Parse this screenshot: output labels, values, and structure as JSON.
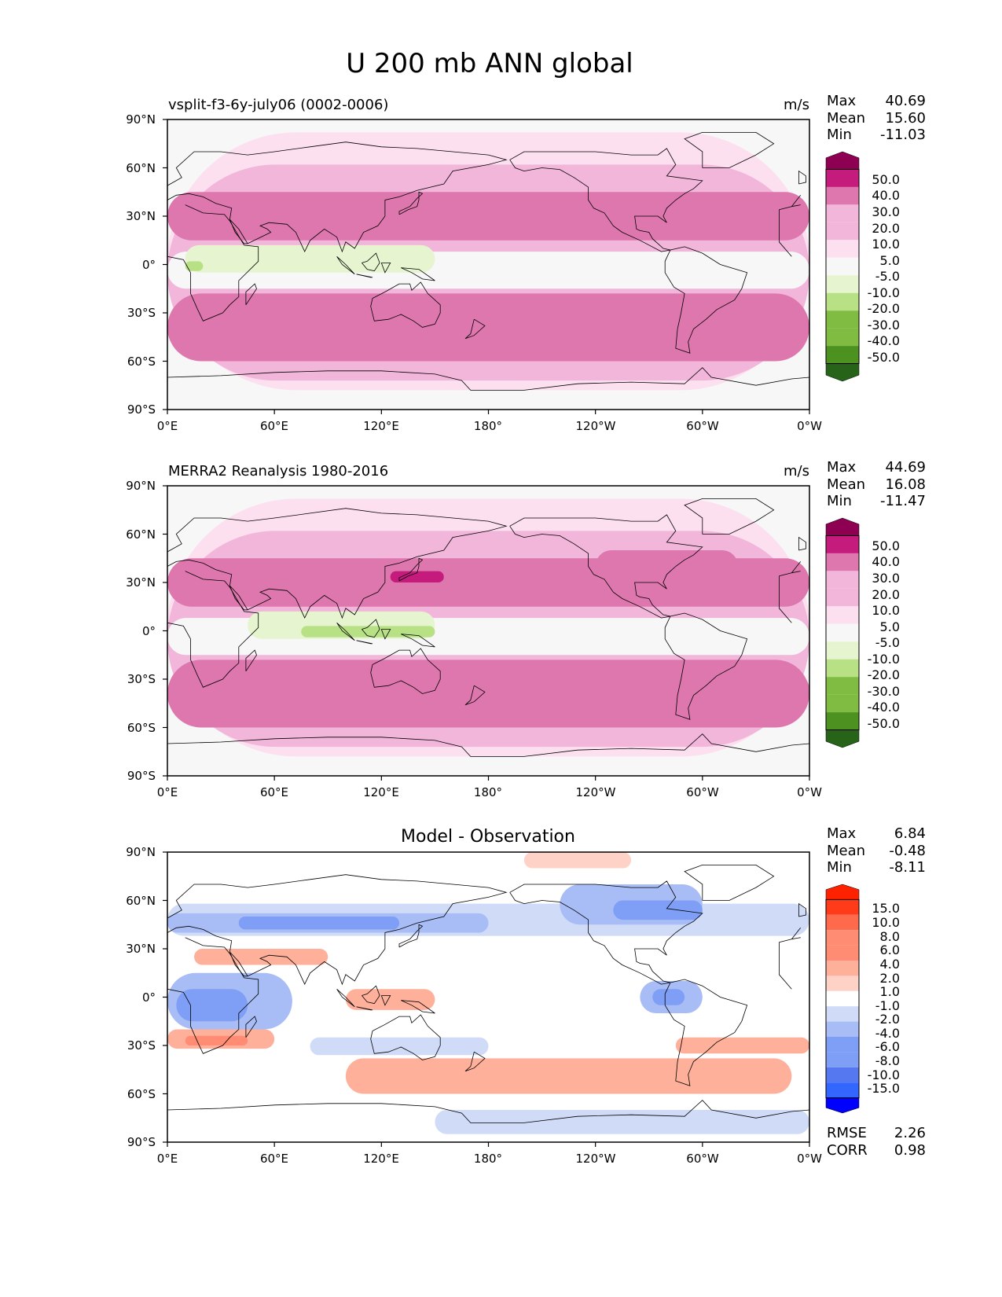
{
  "figure_title": "U 200 mb ANN global",
  "colors": {
    "ref_levels": [
      "#276419",
      "#4d9221",
      "#7fbc41",
      "#b8e186",
      "#e6f5d0",
      "#f7f7f7",
      "#fde0ef",
      "#f1b6da",
      "#de77ae",
      "#c51b7d",
      "#8e0152"
    ],
    "diff_levels": [
      "#0000ff",
      "#3366ff",
      "#5577f0",
      "#7f9ef5",
      "#a8bcf5",
      "#cfdbf7",
      "#ffffff",
      "#ffd2c7",
      "#ffb09b",
      "#ff8c73",
      "#ff6a4d",
      "#ff3b1a",
      "#ff2200"
    ]
  },
  "chart_data": [
    {
      "type": "heatmap",
      "title": "vsplit-f3-6y-july06 (0002-0006)",
      "units": "m/s",
      "stats": [
        {
          "label": "Max",
          "value": "40.69"
        },
        {
          "label": "Mean",
          "value": "15.60"
        },
        {
          "label": "Min",
          "value": "-11.03"
        }
      ],
      "colorbar_ticks": [
        "50.0",
        "40.0",
        "30.0",
        "20.0",
        "10.0",
        "5.0",
        "-5.0",
        "-10.0",
        "-20.0",
        "-30.0",
        "-40.0",
        "-50.0"
      ],
      "x_ticks": [
        "0°E",
        "60°E",
        "120°E",
        "180°",
        "120°W",
        "60°W",
        "0°W"
      ],
      "y_ticks": [
        "90°N",
        "60°N",
        "30°N",
        "0°",
        "30°S",
        "60°S",
        "90°S"
      ],
      "xlim": [
        0,
        360
      ],
      "ylim": [
        -90,
        90
      ],
      "features": [
        {
          "lon": [
            0,
            360
          ],
          "lat": [
            -90,
            90
          ],
          "u": 0
        },
        {
          "lon": [
            0,
            360
          ],
          "lat": [
            -78,
            82
          ],
          "u": 7
        },
        {
          "lon": [
            0,
            360
          ],
          "lat": [
            -72,
            62
          ],
          "u": 12
        },
        {
          "lon": [
            0,
            360
          ],
          "lat": [
            15,
            45
          ],
          "u": 22
        },
        {
          "lon": [
            60,
            320
          ],
          "lat": [
            22,
            40
          ],
          "u": 26
        },
        {
          "lon": [
            10,
            170
          ],
          "lat": [
            25,
            38
          ],
          "u": 32
        },
        {
          "lon": [
            120,
            150
          ],
          "lat": [
            28,
            36
          ],
          "u": 36
        },
        {
          "lon": [
            0,
            360
          ],
          "lat": [
            -15,
            8
          ],
          "u": 2
        },
        {
          "lon": [
            10,
            150
          ],
          "lat": [
            -5,
            12
          ],
          "u": -7
        },
        {
          "lon": [
            10,
            20
          ],
          "lat": [
            -4,
            2
          ],
          "u": -12
        },
        {
          "lon": [
            0,
            360
          ],
          "lat": [
            -60,
            -18
          ],
          "u": 22
        },
        {
          "lon": [
            0,
            125
          ],
          "lat": [
            -55,
            -25
          ],
          "u": 33
        },
        {
          "lon": [
            100,
            215
          ],
          "lat": [
            -40,
            -26
          ],
          "u": 33
        },
        {
          "lon": [
            265,
            360
          ],
          "lat": [
            -50,
            -28
          ],
          "u": 32
        }
      ]
    },
    {
      "type": "heatmap",
      "title": "MERRA2 Reanalysis 1980-2016",
      "units": "m/s",
      "stats": [
        {
          "label": "Max",
          "value": "44.69"
        },
        {
          "label": "Mean",
          "value": "16.08"
        },
        {
          "label": "Min",
          "value": "-11.47"
        }
      ],
      "colorbar_ticks": [
        "50.0",
        "40.0",
        "30.0",
        "20.0",
        "10.0",
        "5.0",
        "-5.0",
        "-10.0",
        "-20.0",
        "-30.0",
        "-40.0",
        "-50.0"
      ],
      "x_ticks": [
        "0°E",
        "60°E",
        "120°E",
        "180°",
        "120°W",
        "60°W",
        "0°W"
      ],
      "y_ticks": [
        "90°N",
        "60°N",
        "30°N",
        "0°",
        "30°S",
        "60°S",
        "90°S"
      ],
      "xlim": [
        0,
        360
      ],
      "ylim": [
        -90,
        90
      ],
      "features": [
        {
          "lon": [
            0,
            360
          ],
          "lat": [
            -90,
            90
          ],
          "u": 0
        },
        {
          "lon": [
            0,
            360
          ],
          "lat": [
            -78,
            82
          ],
          "u": 7
        },
        {
          "lon": [
            0,
            360
          ],
          "lat": [
            -72,
            62
          ],
          "u": 12
        },
        {
          "lon": [
            0,
            360
          ],
          "lat": [
            15,
            45
          ],
          "u": 22
        },
        {
          "lon": [
            60,
            180
          ],
          "lat": [
            22,
            42
          ],
          "u": 27
        },
        {
          "lon": [
            240,
            320
          ],
          "lat": [
            30,
            50
          ],
          "u": 26
        },
        {
          "lon": [
            10,
            180
          ],
          "lat": [
            25,
            38
          ],
          "u": 32
        },
        {
          "lon": [
            110,
            160
          ],
          "lat": [
            27,
            40
          ],
          "u": 38
        },
        {
          "lon": [
            125,
            155
          ],
          "lat": [
            30,
            37
          ],
          "u": 42
        },
        {
          "lon": [
            0,
            360
          ],
          "lat": [
            -15,
            8
          ],
          "u": 2
        },
        {
          "lon": [
            45,
            150
          ],
          "lat": [
            -5,
            12
          ],
          "u": -7
        },
        {
          "lon": [
            75,
            150
          ],
          "lat": [
            -4,
            3
          ],
          "u": -12
        },
        {
          "lon": [
            0,
            360
          ],
          "lat": [
            -60,
            -18
          ],
          "u": 22
        },
        {
          "lon": [
            0,
            110
          ],
          "lat": [
            -55,
            -25
          ],
          "u": 33
        },
        {
          "lon": [
            100,
            215
          ],
          "lat": [
            -35,
            -24
          ],
          "u": 33
        },
        {
          "lon": [
            255,
            360
          ],
          "lat": [
            -47,
            -26
          ],
          "u": 32
        }
      ]
    },
    {
      "type": "heatmap",
      "title": "Model - Observation",
      "units": "",
      "stats": [
        {
          "label": "Max",
          "value": "6.84"
        },
        {
          "label": "Mean",
          "value": "-0.48"
        },
        {
          "label": "Min",
          "value": "-8.11"
        }
      ],
      "colorbar_ticks": [
        "15.0",
        "10.0",
        "8.0",
        "6.0",
        "4.0",
        "2.0",
        "1.0",
        "-1.0",
        "-2.0",
        "-4.0",
        "-6.0",
        "-8.0",
        "-10.0",
        "-15.0"
      ],
      "x_ticks": [
        "0°E",
        "60°E",
        "120°E",
        "180°",
        "120°W",
        "60°W",
        "0°W"
      ],
      "y_ticks": [
        "90°N",
        "60°N",
        "30°N",
        "0°",
        "30°S",
        "60°S",
        "90°S"
      ],
      "xlim": [
        0,
        360
      ],
      "ylim": [
        -90,
        90
      ],
      "metrics": [
        {
          "label": "RMSE",
          "value": "2.26"
        },
        {
          "label": "CORR",
          "value": "0.98"
        }
      ],
      "features": [
        {
          "lon": [
            0,
            360
          ],
          "lat": [
            -90,
            90
          ],
          "u": 0
        },
        {
          "lon": [
            0,
            360
          ],
          "lat": [
            38,
            58
          ],
          "u": -2
        },
        {
          "lon": [
            0,
            180
          ],
          "lat": [
            40,
            52
          ],
          "u": -4
        },
        {
          "lon": [
            40,
            130
          ],
          "lat": [
            42,
            50
          ],
          "u": -6
        },
        {
          "lon": [
            220,
            300
          ],
          "lat": [
            45,
            70
          ],
          "u": -3
        },
        {
          "lon": [
            250,
            300
          ],
          "lat": [
            48,
            60
          ],
          "u": -5
        },
        {
          "lon": [
            0,
            70
          ],
          "lat": [
            -20,
            15
          ],
          "u": -3
        },
        {
          "lon": [
            5,
            45
          ],
          "lat": [
            -15,
            5
          ],
          "u": -5
        },
        {
          "lon": [
            265,
            300
          ],
          "lat": [
            -10,
            10
          ],
          "u": -4
        },
        {
          "lon": [
            272,
            290
          ],
          "lat": [
            -5,
            5
          ],
          "u": -7
        },
        {
          "lon": [
            80,
            180
          ],
          "lat": [
            -36,
            -25
          ],
          "u": -2
        },
        {
          "lon": [
            150,
            360
          ],
          "lat": [
            -85,
            -70
          ],
          "u": -1.5
        },
        {
          "lon": [
            0,
            60
          ],
          "lat": [
            -32,
            -20
          ],
          "u": 3
        },
        {
          "lon": [
            10,
            45
          ],
          "lat": [
            -30,
            -24
          ],
          "u": 5
        },
        {
          "lon": [
            100,
            350
          ],
          "lat": [
            -60,
            -38
          ],
          "u": 2
        },
        {
          "lon": [
            140,
            220
          ],
          "lat": [
            -52,
            -42
          ],
          "u": 3.5
        },
        {
          "lon": [
            15,
            90
          ],
          "lat": [
            20,
            30
          ],
          "u": 2
        },
        {
          "lon": [
            100,
            150
          ],
          "lat": [
            -8,
            5
          ],
          "u": 2.5
        },
        {
          "lon": [
            200,
            260
          ],
          "lat": [
            80,
            90
          ],
          "u": 1.5
        },
        {
          "lon": [
            285,
            360
          ],
          "lat": [
            -35,
            -25
          ],
          "u": 2
        }
      ]
    }
  ]
}
